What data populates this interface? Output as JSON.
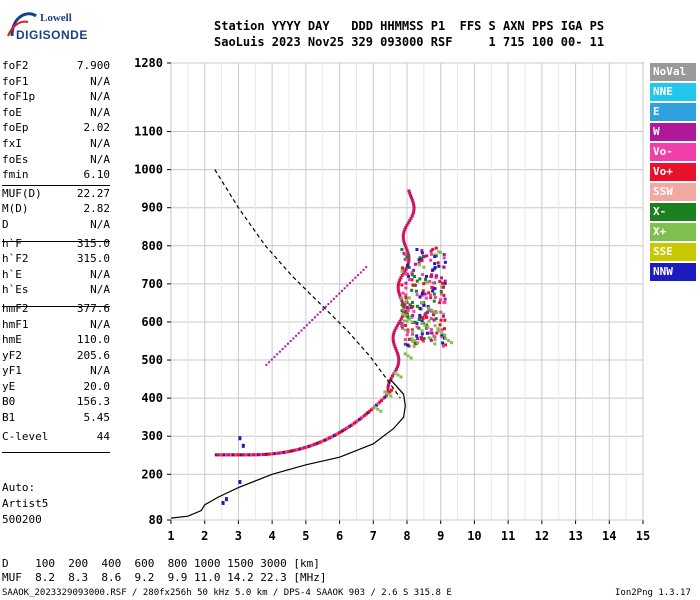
{
  "logo": {
    "line1": "Lowell",
    "line2": "DIGISONDE"
  },
  "header": {
    "line1": "Station YYYY DAY   DDD HHMMSS P1  FFS S AXN PPS IGA PS",
    "line2": "SaoLuis 2023 Nov25 329 093000 RSF     1 715 100 00- 11"
  },
  "params": [
    {
      "name": "foF2",
      "value": "7.900"
    },
    {
      "name": "foF1",
      "value": "N/A"
    },
    {
      "name": "foF1p",
      "value": "N/A"
    },
    {
      "name": "foE",
      "value": "N/A"
    },
    {
      "name": "foEp",
      "value": "2.02"
    },
    {
      "name": "fxI",
      "value": "N/A"
    },
    {
      "name": "foEs",
      "value": "N/A"
    },
    {
      "name": "fmin",
      "value": "6.10"
    },
    {
      "name": "MUF(D)",
      "value": "22.27"
    },
    {
      "name": "M(D)",
      "value": "2.82"
    },
    {
      "name": "D",
      "value": "N/A"
    },
    {
      "name": "h`F",
      "value": "315.0"
    },
    {
      "name": "h`F2",
      "value": "315.0"
    },
    {
      "name": "h`E",
      "value": "N/A"
    },
    {
      "name": "h`Es",
      "value": "N/A"
    },
    {
      "name": "hmF2",
      "value": "377.6"
    },
    {
      "name": "hmF1",
      "value": "N/A"
    },
    {
      "name": "hmE",
      "value": "110.0"
    },
    {
      "name": "yF2",
      "value": "205.6"
    },
    {
      "name": "yF1",
      "value": "N/A"
    },
    {
      "name": "yE",
      "value": "20.0"
    },
    {
      "name": "B0",
      "value": "156.3"
    },
    {
      "name": "B1",
      "value": "5.45"
    },
    {
      "name": "C-level",
      "value": "44"
    }
  ],
  "auto": {
    "line1": "Auto:",
    "line2": "Artist5",
    "line3": "500200"
  },
  "legend": [
    {
      "label": "NoVal",
      "color": "#9a9a9a"
    },
    {
      "label": "NNE",
      "color": "#22c7ee"
    },
    {
      "label": "E",
      "color": "#2fa0e0"
    },
    {
      "label": "W",
      "color": "#b0189a"
    },
    {
      "label": "Vo-",
      "color": "#f03fa8"
    },
    {
      "label": "Vo+",
      "color": "#e8102a"
    },
    {
      "label": "SSW",
      "color": "#f0a8a0"
    },
    {
      "label": "X-",
      "color": "#1a8020"
    },
    {
      "label": "X+",
      "color": "#7fbf50"
    },
    {
      "label": "SSE",
      "color": "#c8c800"
    },
    {
      "label": "NNW",
      "color": "#1c1cc0"
    }
  ],
  "bottom": {
    "d_row": "D    100  200  400  600  800 1000 1500 3000 [km]",
    "muf_row": "MUF  8.2  8.3  8.6  9.2  9.9 11.0 14.2 22.3 [MHz]"
  },
  "footer": {
    "left": "SAAOK_2023329093000.RSF / 280fx256h 50 kHz 5.0 km / DPS-4 SAAOK 903 / 2.6 S 315.8 E",
    "right": "Ion2Png 1.3.17"
  },
  "chart_data": {
    "type": "scatter",
    "x_range": [
      1,
      15
    ],
    "y_range": [
      80,
      1280
    ],
    "x_ticks": [
      1,
      2,
      3,
      4,
      5,
      6,
      7,
      8,
      9,
      10,
      11,
      12,
      13,
      14,
      15
    ],
    "y_ticks": [
      80,
      200,
      300,
      400,
      500,
      600,
      700,
      800,
      900,
      1000,
      1100,
      1280
    ],
    "grid": true,
    "series": [
      {
        "points": [
          [
            7.0,
            400
          ],
          [
            7.2,
            430
          ],
          [
            7.4,
            470
          ],
          [
            7.6,
            520
          ],
          [
            7.8,
            560
          ],
          [
            8.0,
            600
          ],
          [
            8.2,
            640
          ],
          [
            8.4,
            680
          ],
          [
            8.6,
            640
          ],
          [
            8.8,
            610
          ]
        ]
      },
      {
        "points": [
          [
            7.0,
            380
          ],
          [
            7.3,
            420
          ],
          [
            7.6,
            470
          ],
          [
            7.9,
            520
          ],
          [
            8.1,
            560
          ],
          [
            8.4,
            600
          ],
          [
            8.6,
            640
          ],
          [
            8.9,
            580
          ],
          [
            9.1,
            560
          ]
        ]
      }
    ],
    "profile_solid": [
      [
        1,
        85
      ],
      [
        1.5,
        90
      ],
      [
        1.9,
        105
      ],
      [
        2,
        120
      ],
      [
        2.2,
        130
      ],
      [
        2.4,
        140
      ],
      [
        3,
        165
      ],
      [
        4,
        200
      ],
      [
        5,
        225
      ],
      [
        6,
        245
      ],
      [
        7,
        280
      ],
      [
        7.6,
        320
      ],
      [
        7.9,
        350
      ],
      [
        7.95,
        380
      ],
      [
        7.9,
        410
      ],
      [
        7.7,
        430
      ],
      [
        7.5,
        450
      ]
    ],
    "profile_dashed": [
      [
        2.3,
        1000
      ],
      [
        3,
        900
      ],
      [
        3.8,
        800
      ],
      [
        4.6,
        720
      ],
      [
        5.4,
        650
      ],
      [
        6.2,
        580
      ],
      [
        6.9,
        510
      ],
      [
        7.4,
        450
      ],
      [
        7.8,
        400
      ]
    ]
  }
}
